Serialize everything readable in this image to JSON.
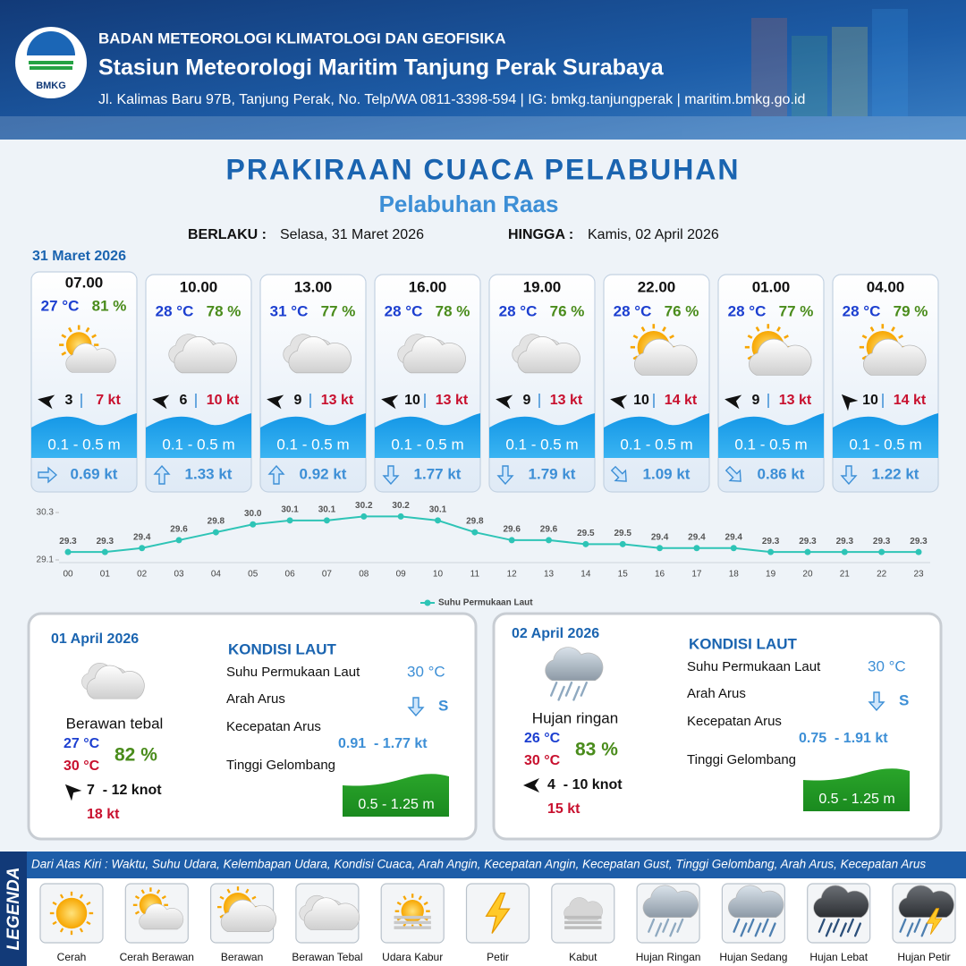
{
  "header": {
    "logo_text": "BMKG",
    "agency": "BADAN METEOROLOGI KLIMATOLOGI DAN GEOFISIKA",
    "station": "Stasiun Meteorologi Maritim Tanjung Perak Surabaya",
    "address": "Jl. Kalimas Baru 97B, Tanjung Perak, No. Telp/WA 0811-3398-594 | IG: bmkg.tanjungperak | maritim.bmkg.go.id"
  },
  "title": "PRAKIRAAN CUACA PELABUHAN",
  "subtitle": "Pelabuhan Raas",
  "validity": {
    "from_label": "BERLAKU :",
    "from": "Selasa, 31 Maret 2026",
    "to_label": "HINGGA :",
    "to": "Kamis, 02 April 2026"
  },
  "day_label": "31 Maret 2026",
  "forecasts": [
    {
      "time": "07.00",
      "temperature": "27 °C",
      "humidity": "81 %",
      "wind_speed": 3,
      "gust": "7 kt",
      "wave": "0.1 - 0.5 m",
      "current": "0.69 kt"
    },
    {
      "time": "10.00",
      "temperature": "28 °C",
      "humidity": "78 %",
      "wind_speed": 6,
      "gust": "10 kt",
      "wave": "0.1 - 0.5 m",
      "current": "1.33 kt"
    },
    {
      "time": "13.00",
      "temperature": "31 °C",
      "humidity": "77 %",
      "wind_speed": 9,
      "gust": "13 kt",
      "wave": "0.1 - 0.5 m",
      "current": "0.92 kt"
    },
    {
      "time": "16.00",
      "temperature": "28 °C",
      "humidity": "78 %",
      "wind_speed": 10,
      "gust": "13 kt",
      "wave": "0.1 - 0.5 m",
      "current": "1.77 kt"
    },
    {
      "time": "19.00",
      "temperature": "28 °C",
      "humidity": "76 %",
      "wind_speed": 9,
      "gust": "13 kt",
      "wave": "0.1 - 0.5 m",
      "current": "1.79 kt"
    },
    {
      "time": "22.00",
      "temperature": "28 °C",
      "humidity": "76 %",
      "wind_speed": 10,
      "gust": "14 kt",
      "wave": "0.1 - 0.5 m",
      "current": "1.09 kt"
    },
    {
      "time": "01.00",
      "temperature": "28 °C",
      "humidity": "77 %",
      "wind_speed": 9,
      "gust": "13 kt",
      "wave": "0.1 - 0.5 m",
      "current": "0.86 kt"
    },
    {
      "time": "04.00",
      "temperature": "28 °C",
      "humidity": "79 %",
      "wind_speed": 10,
      "gust": "14 kt",
      "wave": "0.1 - 0.5 m",
      "current": "1.22 kt"
    }
  ],
  "chart_data": {
    "type": "line",
    "categories": [
      "00",
      "01",
      "02",
      "03",
      "04",
      "05",
      "06",
      "07",
      "08",
      "09",
      "10",
      "11",
      "12",
      "13",
      "14",
      "15",
      "16",
      "17",
      "18",
      "19",
      "20",
      "21",
      "22",
      "23"
    ],
    "series": [
      {
        "name": "Suhu Permukaan Laut",
        "color": "#2ec4b6",
        "values": [
          29.3,
          29.3,
          29.4,
          29.6,
          29.8,
          30.0,
          30.1,
          30.1,
          30.2,
          30.2,
          30.1,
          29.8,
          29.6,
          29.6,
          29.5,
          29.5,
          29.4,
          29.4,
          29.4,
          29.3,
          29.3,
          29.3,
          29.3,
          29.3
        ],
        "value_labels": [
          "29.3",
          "29.3",
          "29.4",
          "29.6",
          "29.8",
          "30.0",
          "30.1",
          "30.1",
          "30.2",
          "30.2",
          "30.1",
          "29.8",
          "29.6",
          "29.6",
          "29.5",
          "29.5",
          "29.4",
          "29.4",
          "29.4",
          "29.3",
          "29.3",
          "29.3",
          "29.3",
          "29.3"
        ]
      }
    ],
    "ylim": [
      29.1,
      30.3
    ],
    "yticks": [
      29.1,
      30.3
    ],
    "legend": "bottom"
  },
  "days": [
    {
      "date": "01 April 2026",
      "heading": "KONDISI LAUT",
      "condition": "Berawan tebal",
      "temp_min": "27 °C",
      "temp_max": "30 °C",
      "humidity": "82 %",
      "wind": "7  - 12 knot",
      "gust": "18 kt",
      "sst_label": "Suhu Permukaan Laut",
      "sst": "30 °C",
      "current_dir_label": "Arah Arus",
      "current_dir": "S",
      "current_speed_label": "Kecepatan Arus",
      "current_speed": "0.91  - 1.77 kt",
      "wave_label": "Tinggi Gelombang",
      "wave": "0.5 - 1.25 m"
    },
    {
      "date": "02 April 2026",
      "heading": "KONDISI LAUT",
      "condition": "Hujan ringan",
      "temp_min": "26 °C",
      "temp_max": "30 °C",
      "humidity": "83 %",
      "wind": "4  - 10 knot",
      "gust": "15 kt",
      "sst_label": "Suhu Permukaan Laut",
      "sst": "30 °C",
      "current_dir_label": "Arah Arus",
      "current_dir": "S",
      "current_speed_label": "Kecepatan Arus",
      "current_speed": "0.75  - 1.91 kt",
      "wave_label": "Tinggi Gelombang",
      "wave": "0.5 - 1.25 m"
    }
  ],
  "legend": {
    "title": "LEGENDA",
    "description": "Dari Atas Kiri : Waktu, Suhu Udara, Kelembapan Udara, Kondisi Cuaca, Arah Angin, Kecepatan Angin, Kecepatan Gust, Tinggi Gelombang, Arah Arus, Kecepatan Arus",
    "items": [
      "Cerah",
      "Cerah Berawan",
      "Berawan",
      "Berawan Tebal",
      "Udara Kabur",
      "Petir",
      "Kabut",
      "Hujan Ringan",
      "Hujan Sedang",
      "Hujan Lebat",
      "Hujan Petir"
    ]
  }
}
